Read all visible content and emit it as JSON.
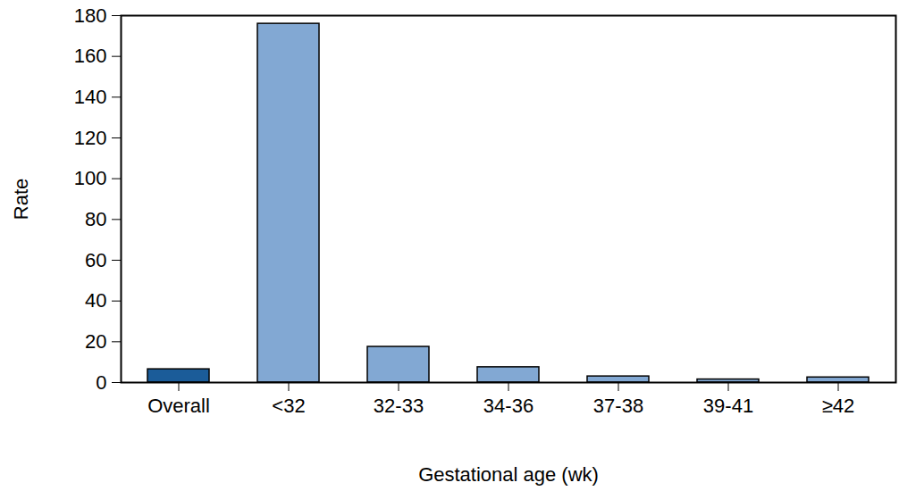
{
  "chart_data": {
    "type": "bar",
    "categories": [
      "Overall",
      "<32",
      "32-33",
      "34-36",
      "37-38",
      "39-41",
      "≥42"
    ],
    "values": [
      6.5,
      176,
      17.5,
      7.5,
      3,
      1.5,
      2.5
    ],
    "colors": [
      "#1b5c99",
      "#82a8d3",
      "#82a8d3",
      "#82a8d3",
      "#82a8d3",
      "#82a8d3",
      "#82a8d3"
    ],
    "xlabel": "Gestational age (wk)",
    "ylabel": "Rate",
    "ylim": [
      0,
      180
    ],
    "yticks": [
      0,
      20,
      40,
      60,
      80,
      100,
      120,
      140,
      160,
      180
    ],
    "grid": false
  }
}
